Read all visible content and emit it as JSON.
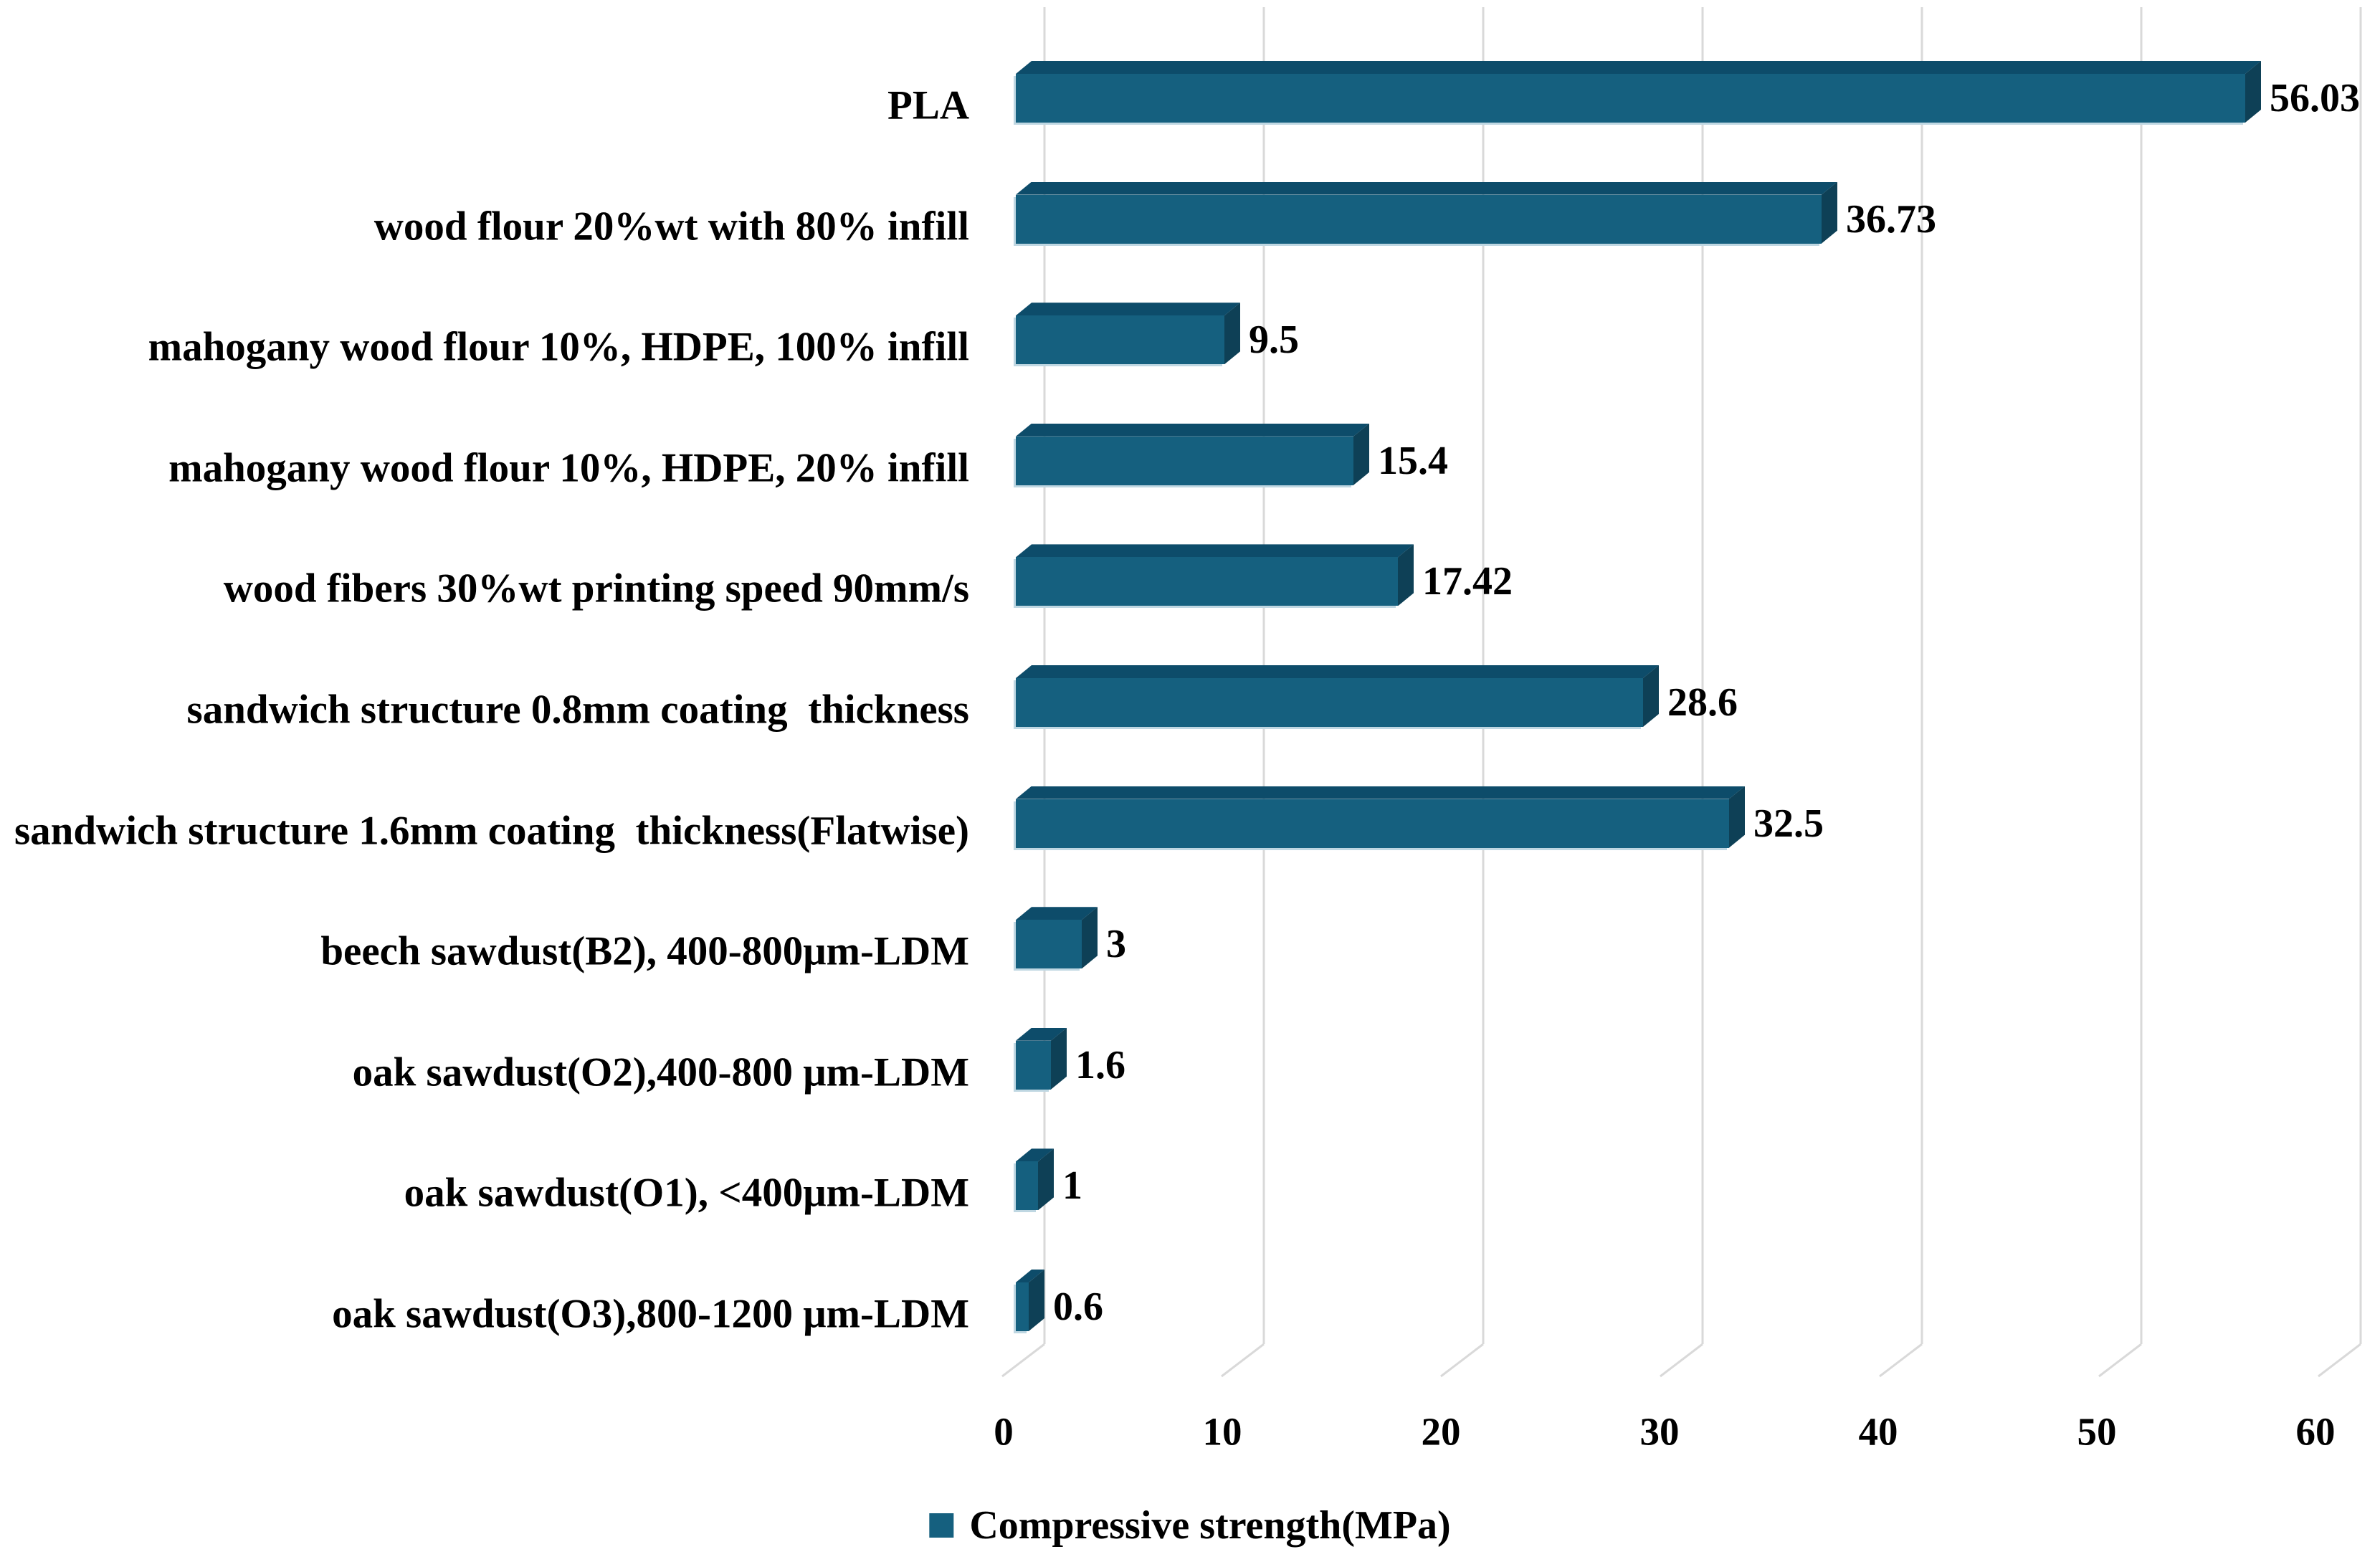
{
  "chart_data": {
    "type": "bar",
    "orientation": "horizontal",
    "effect": "3d",
    "title": "",
    "xlabel": "",
    "ylabel": "",
    "legend_label": "Compressive strength(MPa)",
    "legend_position": "bottom",
    "grid": true,
    "xlim": [
      0,
      60
    ],
    "x_ticks": [
      0,
      10,
      20,
      30,
      40,
      50,
      60
    ],
    "x_tick_labels": [
      "0",
      "10",
      "20",
      "30",
      "40",
      "50",
      "60"
    ],
    "categories": [
      "PLA",
      "wood flour 20%wt with 80% infill",
      "mahogany wood flour 10%, HDPE, 100% infill",
      "mahogany wood flour 10%, HDPE, 20% infill",
      "wood fibers 30%wt printing speed 90mm/s",
      "sandwich structure 0.8mm coating  thickness",
      "sandwich structure 1.6mm coating  thickness(Flatwise)",
      "beech sawdust(B2), 400-800μm-LDM",
      "oak sawdust(O2),400-800 μm-LDM",
      "oak sawdust(O1), <400μm-LDM",
      "oak sawdust(O3),800-1200 μm-LDM"
    ],
    "values": [
      56.03,
      36.73,
      9.5,
      15.4,
      17.42,
      28.6,
      32.5,
      3,
      1.6,
      1,
      0.6
    ],
    "value_labels": [
      "56.03",
      "36.73",
      "9.5",
      "15.4",
      "17.42",
      "28.6",
      "32.5",
      "3",
      "1.6",
      "1",
      "0.6"
    ],
    "series": [
      {
        "name": "Compressive strength(MPa)",
        "values": [
          56.03,
          36.73,
          9.5,
          15.4,
          17.42,
          28.6,
          32.5,
          3,
          1.6,
          1,
          0.6
        ]
      }
    ],
    "colors": {
      "bar_front": "#15607F",
      "bar_top": "#0D4C6A",
      "bar_side": "#0E4056",
      "bar_light_edge": "#BFD7E2",
      "gridline": "#D9D9D9",
      "text": "#000000",
      "background": "#FFFFFF"
    }
  }
}
